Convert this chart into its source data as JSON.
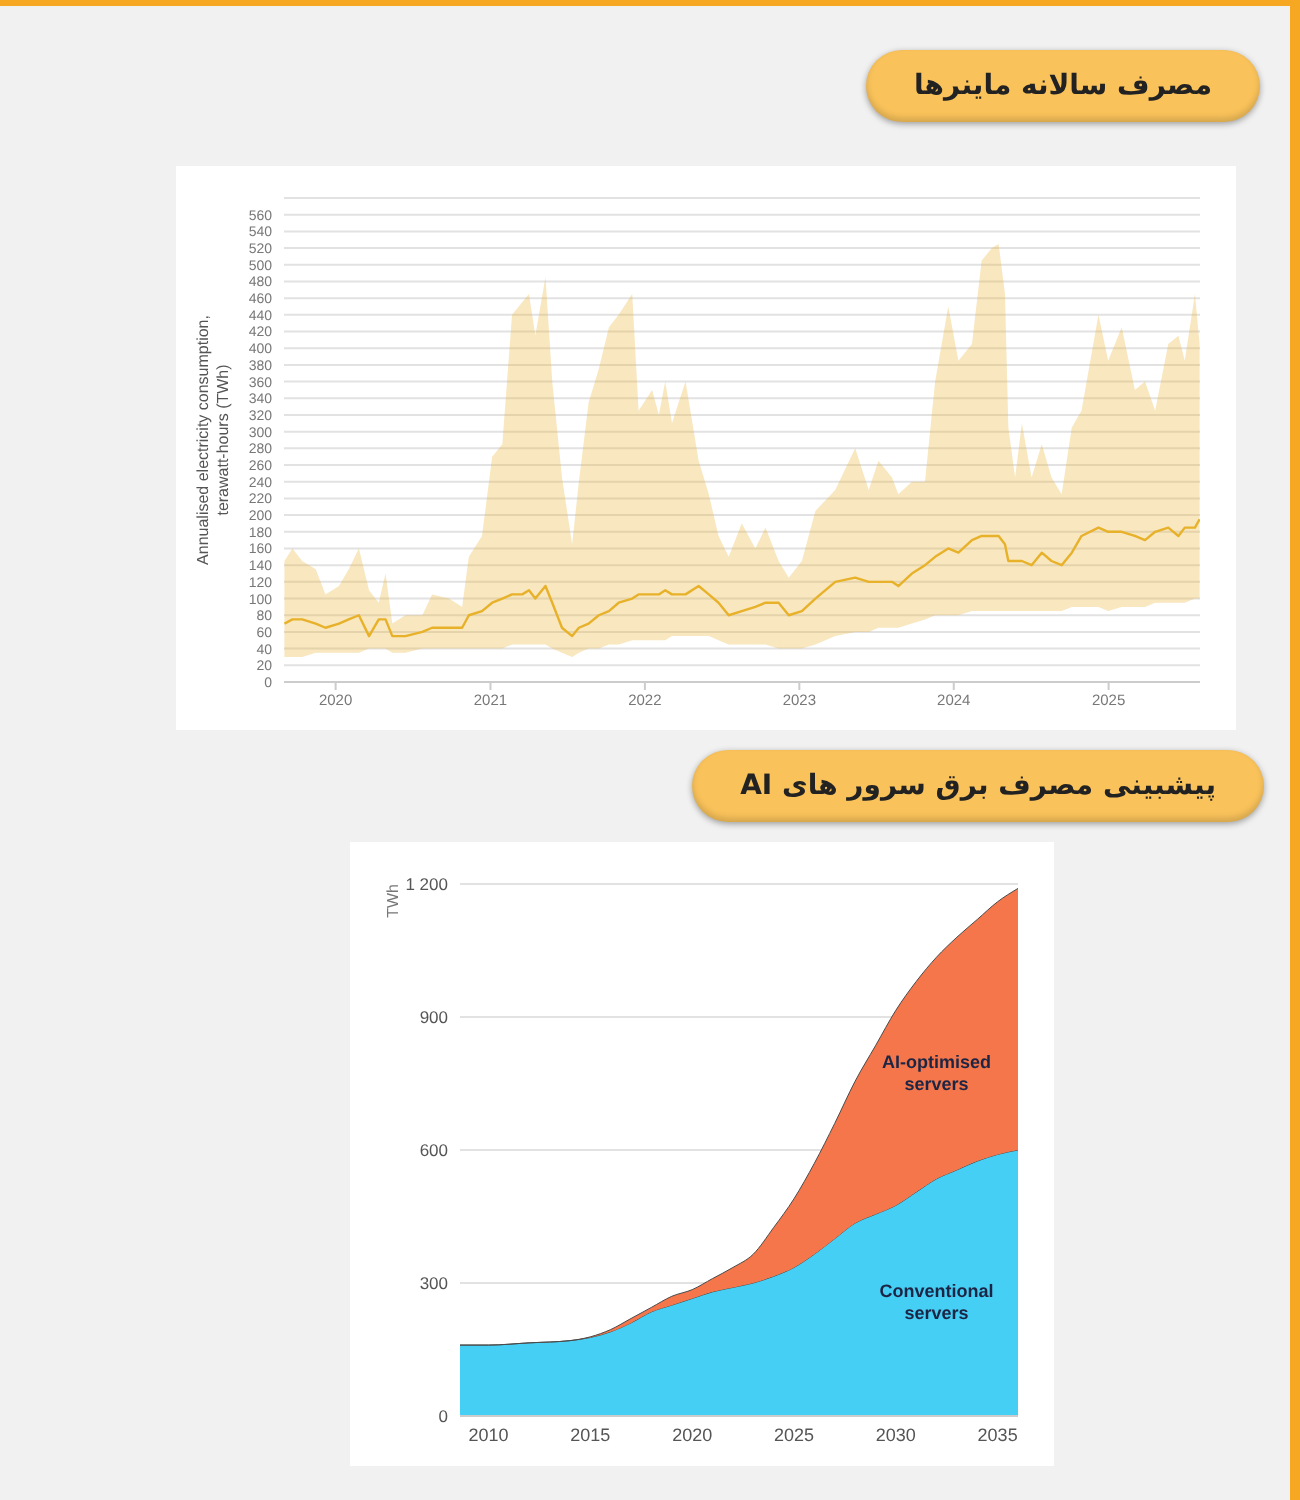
{
  "chart_data": [
    {
      "type": "line",
      "title": "مصرف سالانه ماینرها",
      "ylabel": "Annualised electricity consumption, terawatt-hours (TWh)",
      "marker": "none",
      "grid": "y",
      "x": [
        "2019-09-02",
        "2019-09-21",
        "2019-10-14",
        "2019-11-15",
        "2019-12-08",
        "2020-01-09",
        "2020-02-01",
        "2020-02-25",
        "2020-03-20",
        "2020-04-12",
        "2020-04-28",
        "2020-05-14",
        "2020-06-14",
        "2020-07-24",
        "2020-08-16",
        "2020-09-25",
        "2020-10-26",
        "2020-11-11",
        "2020-12-12",
        "2021-01-05",
        "2021-01-29",
        "2021-02-21",
        "2021-03-17",
        "2021-04-02",
        "2021-04-17",
        "2021-05-11",
        "2021-05-27",
        "2021-06-19",
        "2021-07-13",
        "2021-07-29",
        "2021-08-21",
        "2021-09-14",
        "2021-10-08",
        "2021-10-31",
        "2021-12-02",
        "2021-12-17",
        "2022-01-18",
        "2022-02-03",
        "2022-02-18",
        "2022-03-06",
        "2022-04-07",
        "2022-05-08",
        "2022-06-01",
        "2022-06-24",
        "2022-07-18",
        "2022-08-18",
        "2022-09-19",
        "2022-10-13",
        "2022-11-13",
        "2022-12-07",
        "2023-01-07",
        "2023-02-08",
        "2023-03-27",
        "2023-05-13",
        "2023-06-14",
        "2023-07-07",
        "2023-08-08",
        "2023-08-23",
        "2023-09-24",
        "2023-10-25",
        "2023-11-18",
        "2023-12-19",
        "2024-01-12",
        "2024-02-13",
        "2024-03-07",
        "2024-03-31",
        "2024-04-16",
        "2024-05-01",
        "2024-05-09",
        "2024-05-25",
        "2024-06-10",
        "2024-07-03",
        "2024-07-27",
        "2024-08-19",
        "2024-09-12",
        "2024-10-06",
        "2024-10-29",
        "2024-12-08",
        "2024-12-31",
        "2025-02-01",
        "2025-03-04",
        "2025-03-28",
        "2025-04-21",
        "2025-05-22",
        "2025-06-15",
        "2025-06-30",
        "2025-07-24",
        "2025-08-04"
      ],
      "series": [
        {
          "color": "#e8b12a",
          "values": [
            70,
            75,
            75,
            70,
            65,
            70,
            75,
            80,
            55,
            75,
            75,
            55,
            55,
            60,
            65,
            65,
            65,
            80,
            85,
            95,
            100,
            105,
            105,
            110,
            100,
            115,
            95,
            65,
            55,
            65,
            70,
            80,
            85,
            95,
            100,
            105,
            105,
            105,
            110,
            105,
            105,
            115,
            105,
            95,
            80,
            85,
            90,
            95,
            95,
            80,
            85,
            100,
            120,
            125,
            120,
            120,
            120,
            115,
            130,
            140,
            150,
            160,
            155,
            170,
            175,
            175,
            175,
            165,
            145,
            145,
            145,
            140,
            155,
            145,
            140,
            155,
            175,
            185,
            180,
            180,
            175,
            170,
            180,
            185,
            175,
            185,
            185,
            195
          ],
          "lower": [
            30,
            30,
            30,
            35,
            35,
            35,
            35,
            35,
            40,
            40,
            40,
            35,
            35,
            40,
            40,
            40,
            40,
            40,
            40,
            40,
            40,
            45,
            45,
            45,
            45,
            45,
            40,
            35,
            30,
            35,
            40,
            40,
            45,
            45,
            50,
            50,
            50,
            50,
            50,
            55,
            55,
            55,
            55,
            50,
            45,
            45,
            45,
            45,
            40,
            40,
            40,
            45,
            55,
            60,
            60,
            65,
            65,
            65,
            70,
            75,
            80,
            80,
            80,
            85,
            85,
            85,
            85,
            85,
            85,
            85,
            85,
            85,
            85,
            85,
            85,
            90,
            90,
            90,
            85,
            90,
            90,
            90,
            95,
            95,
            95,
            95,
            100,
            100
          ],
          "upper": [
            145,
            160,
            145,
            135,
            105,
            115,
            135,
            160,
            110,
            95,
            130,
            70,
            80,
            80,
            105,
            100,
            90,
            150,
            175,
            270,
            285,
            440,
            455,
            465,
            415,
            485,
            360,
            245,
            165,
            240,
            335,
            375,
            425,
            440,
            465,
            325,
            350,
            320,
            360,
            310,
            360,
            265,
            225,
            175,
            150,
            190,
            160,
            185,
            145,
            125,
            145,
            205,
            230,
            280,
            230,
            265,
            245,
            225,
            240,
            240,
            360,
            450,
            385,
            405,
            505,
            520,
            525,
            465,
            305,
            245,
            310,
            245,
            285,
            245,
            225,
            305,
            325,
            440,
            385,
            425,
            350,
            360,
            325,
            405,
            415,
            385,
            465,
            405
          ]
        }
      ],
      "xlim": [
        "2019-09-01",
        "2025-08-05"
      ],
      "xticks": [
        "2020",
        "2021",
        "2022",
        "2023",
        "2024",
        "2025"
      ],
      "ylim": [
        0,
        580
      ],
      "yticks": [
        0,
        20,
        40,
        60,
        80,
        100,
        120,
        140,
        160,
        180,
        200,
        220,
        240,
        260,
        280,
        300,
        320,
        340,
        360,
        380,
        400,
        420,
        440,
        460,
        480,
        500,
        520,
        540,
        560
      ]
    },
    {
      "type": "area",
      "title": "پیشبینی مصرف برق سرور های AI",
      "ylabel": "TWh",
      "stacked": true,
      "grid": "y",
      "x": [
        2008.6,
        2010,
        2012,
        2014,
        2016,
        2017,
        2018,
        2019,
        2020,
        2021,
        2022,
        2023,
        2024,
        2025,
        2026,
        2027,
        2028,
        2029,
        2030,
        2031,
        2032,
        2033,
        2034,
        2035,
        2036
      ],
      "series": [
        {
          "name": "Conventional servers",
          "color": "#45cff5",
          "values": [
            160,
            160,
            165,
            170,
            190,
            210,
            235,
            250,
            265,
            280,
            290,
            300,
            315,
            335,
            365,
            400,
            435,
            455,
            475,
            505,
            535,
            555,
            575,
            590,
            600
          ]
        },
        {
          "name": "AI-optimised servers",
          "color": "#f4764a",
          "values": [
            0,
            0,
            0,
            0,
            5,
            10,
            10,
            20,
            20,
            30,
            45,
            65,
            110,
            155,
            205,
            260,
            320,
            380,
            440,
            475,
            500,
            525,
            545,
            570,
            590
          ]
        }
      ],
      "xlim": [
        2008.6,
        2036
      ],
      "xticks": [
        2010,
        2015,
        2020,
        2025,
        2030,
        2035
      ],
      "ylim": [
        0,
        1200
      ],
      "yticks": [
        0,
        300,
        600,
        900,
        1200
      ]
    }
  ]
}
